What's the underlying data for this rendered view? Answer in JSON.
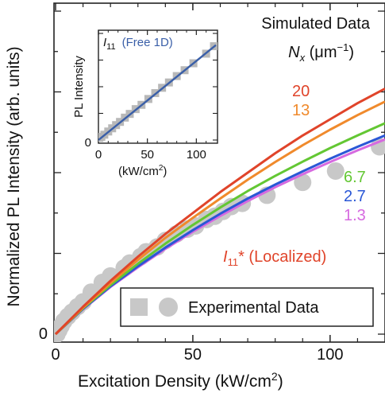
{
  "chart_data": [
    {
      "type": "line",
      "ylabel": "Normalized PL Intensity (arb. units)",
      "xlabel_main": "Excitation Density (kW/cm",
      "xlabel_sup": "2",
      "xlabel_end": ")",
      "xlim": [
        0,
        120
      ],
      "ylim": [
        0,
        1.0
      ],
      "x_ticks": [
        0,
        50,
        100
      ],
      "y_tick_labels": [
        "0"
      ],
      "grid": false,
      "annotation_sim_title": "Simulated Data",
      "annotation_nx_symbol": "N",
      "annotation_nx_sub": "x",
      "annotation_nx_units": " (μm",
      "annotation_nx_sup": "−1",
      "annotation_nx_close": ")",
      "localized_label_main": "I",
      "localized_label_sub": "11",
      "localized_label_rest": "* (Localized)",
      "localized_color": "#e0442a",
      "legend_label": "Experimental Data",
      "experimental": {
        "color": "#c8c8c8",
        "x": [
          0.5,
          1.2,
          2,
          3,
          4.5,
          6,
          8,
          10,
          13,
          17,
          20,
          25,
          27,
          31,
          33,
          37,
          40,
          44,
          48,
          51,
          55,
          58,
          61,
          64,
          68,
          77,
          90,
          102,
          118
        ],
        "y": [
          0.0,
          0.012,
          0.025,
          0.04,
          0.055,
          0.068,
          0.085,
          0.1,
          0.13,
          0.16,
          0.18,
          0.205,
          0.22,
          0.24,
          0.255,
          0.27,
          0.29,
          0.31,
          0.325,
          0.335,
          0.355,
          0.365,
          0.38,
          0.395,
          0.405,
          0.43,
          0.47,
          0.505,
          0.58
        ]
      },
      "series": [
        {
          "name": "20",
          "color": "#e0442a",
          "x": [
            0,
            10,
            20,
            30,
            40,
            50,
            60,
            70,
            80,
            90,
            100,
            110,
            120
          ],
          "y": [
            0,
            0.085,
            0.165,
            0.24,
            0.31,
            0.375,
            0.44,
            0.5,
            0.56,
            0.615,
            0.665,
            0.715,
            0.76
          ]
        },
        {
          "name": "13",
          "color": "#f08a2c",
          "x": [
            0,
            10,
            20,
            30,
            40,
            50,
            60,
            70,
            80,
            90,
            100,
            110,
            120
          ],
          "y": [
            0,
            0.082,
            0.158,
            0.23,
            0.298,
            0.36,
            0.42,
            0.478,
            0.533,
            0.585,
            0.633,
            0.678,
            0.72
          ]
        },
        {
          "name": "6.7",
          "color": "#63c733",
          "x": [
            0,
            10,
            20,
            30,
            40,
            50,
            60,
            70,
            80,
            90,
            100,
            110,
            120
          ],
          "y": [
            0,
            0.08,
            0.152,
            0.218,
            0.28,
            0.338,
            0.392,
            0.443,
            0.49,
            0.534,
            0.576,
            0.615,
            0.653
          ]
        },
        {
          "name": "2.7",
          "color": "#2a57d6",
          "x": [
            0,
            10,
            20,
            30,
            40,
            50,
            60,
            70,
            80,
            90,
            100,
            110,
            120
          ],
          "y": [
            0,
            0.078,
            0.148,
            0.21,
            0.268,
            0.322,
            0.373,
            0.42,
            0.463,
            0.504,
            0.543,
            0.58,
            0.615
          ]
        },
        {
          "name": "1.3",
          "color": "#d66ae0",
          "x": [
            0,
            10,
            20,
            30,
            40,
            50,
            60,
            70,
            80,
            90,
            100,
            110,
            120
          ],
          "y": [
            0,
            0.077,
            0.146,
            0.207,
            0.264,
            0.317,
            0.366,
            0.412,
            0.455,
            0.495,
            0.533,
            0.569,
            0.603
          ]
        }
      ]
    },
    {
      "type": "line",
      "ylabel": "PL Intensity",
      "xlabel_main": "(kW/cm",
      "xlabel_sup": "2",
      "xlabel_end": ")",
      "xlim": [
        0,
        120
      ],
      "ylim": [
        0,
        1.0
      ],
      "x_ticks": [
        0,
        50,
        100
      ],
      "y_tick_labels": [
        "0"
      ],
      "title_symbol": "I",
      "title_sub": "11",
      "title_rest": "(Free 1D)",
      "title_rest_color": "#3a5fa8",
      "line_color": "#3a5fa8",
      "marker_color": "#b8b8b8",
      "fit": {
        "x": [
          0,
          120
        ],
        "y": [
          0.0,
          0.89
        ]
      },
      "experimental": {
        "x": [
          1,
          3,
          6,
          10,
          14,
          18,
          22,
          27,
          32,
          38,
          44,
          51,
          58,
          65,
          72,
          80,
          88,
          97,
          110,
          118
        ],
        "y": [
          0.02,
          0.03,
          0.05,
          0.08,
          0.11,
          0.14,
          0.17,
          0.21,
          0.245,
          0.29,
          0.33,
          0.385,
          0.44,
          0.49,
          0.54,
          0.6,
          0.655,
          0.72,
          0.81,
          0.88
        ]
      }
    }
  ]
}
